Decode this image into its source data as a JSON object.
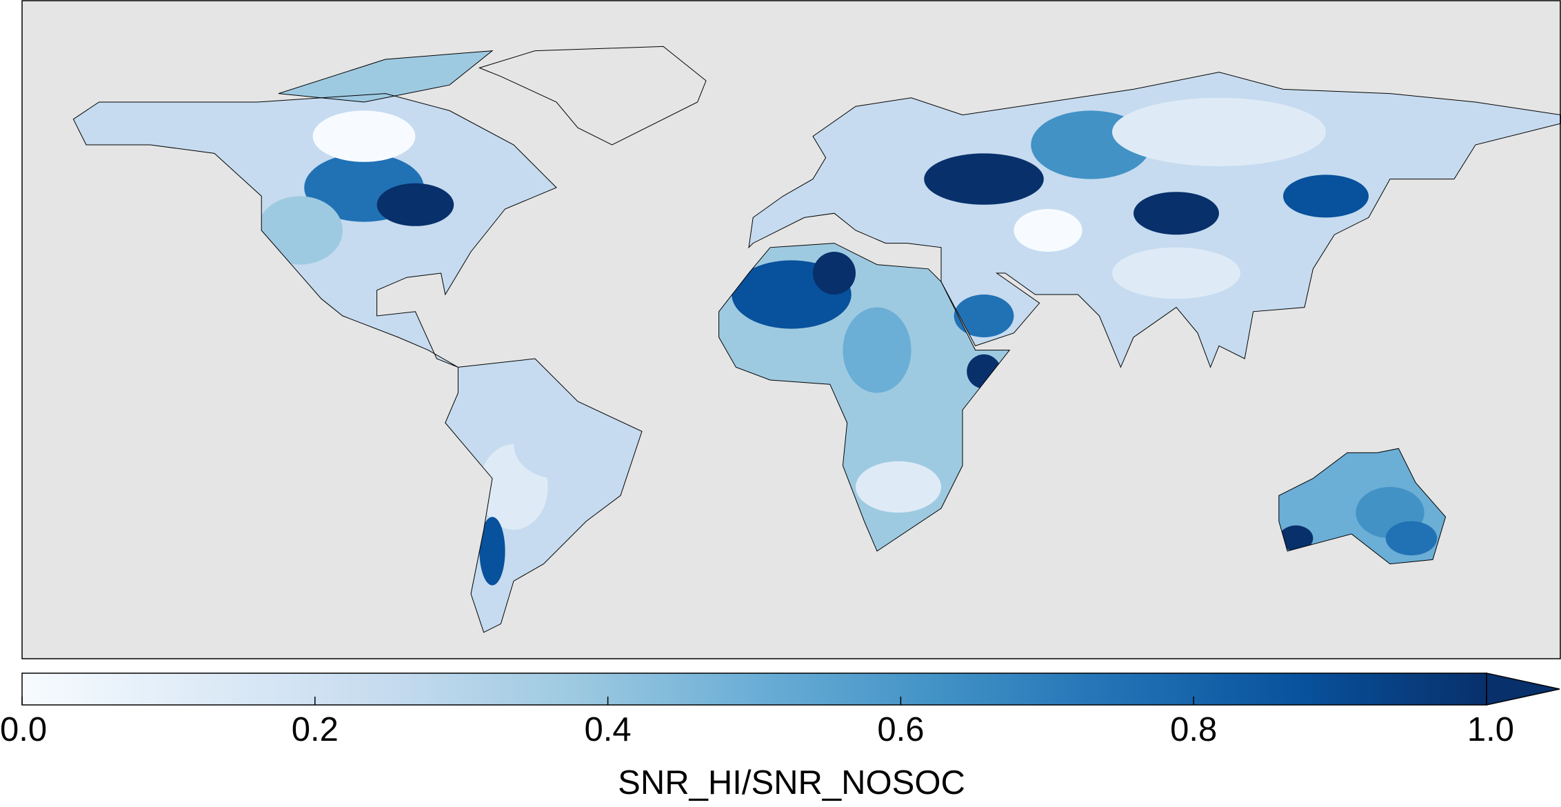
{
  "chart_data": {
    "type": "colorbar",
    "xlabel": "SNR_HI/SNR_NOSOC",
    "xlim": [
      0,
      1
    ],
    "xticks": [
      {
        "value": 0,
        "label": "0.0"
      },
      {
        "value": 0.2,
        "label": "0.2"
      },
      {
        "value": 0.4,
        "label": "0.4"
      },
      {
        "value": 0.6,
        "label": "0.6"
      },
      {
        "value": 0.8,
        "label": "0.8"
      },
      {
        "value": 1,
        "label": "1.0"
      }
    ],
    "colors": [
      "#f7fbff",
      "#deebf7",
      "#c6dbef",
      "#9ecae1",
      "#6baed6",
      "#4292c6",
      "#2171b5",
      "#08519c",
      "#08306b"
    ],
    "extend_color": "#08306b",
    "background": "#e5e5e5"
  }
}
